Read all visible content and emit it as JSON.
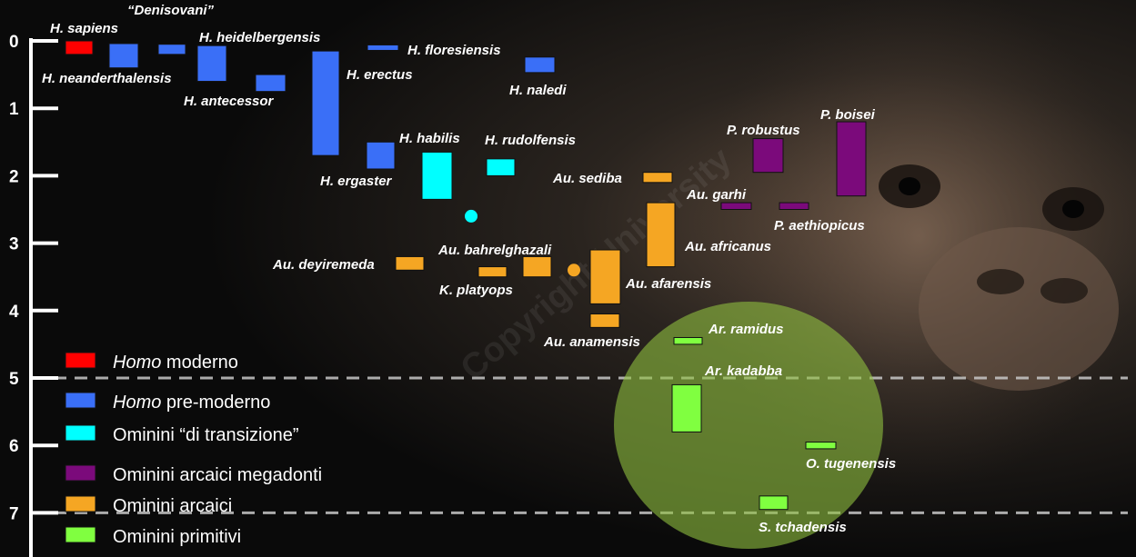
{
  "chart_data": {
    "type": "range-bar",
    "title": "",
    "xlabel": "",
    "ylabel": "",
    "ylim": [
      0,
      7.5
    ],
    "yticks": [
      "0",
      "1",
      "2",
      "3",
      "4",
      "5",
      "6",
      "7"
    ],
    "ref_lines": [
      5,
      7
    ],
    "grid": false,
    "legend_position": "bottom-left",
    "categories": {
      "homo-moderno": {
        "color": "#ff0000"
      },
      "homo-pre-moderno": {
        "color": "#3a6ff7"
      },
      "transizione": {
        "color": "#00ffff"
      },
      "megadonti": {
        "color": "#7b0a7b"
      },
      "arcaici": {
        "color": "#f5a623"
      },
      "primitivi": {
        "color": "#80ff40"
      }
    },
    "legend": [
      {
        "key": "homo-moderno",
        "italic": "Homo",
        "text": " moderno"
      },
      {
        "key": "homo-pre-moderno",
        "italic": "Homo",
        "text": " pre-moderno"
      },
      {
        "key": "transizione",
        "italic": "",
        "text": "Ominini “di transizione”"
      },
      {
        "key": "megadonti",
        "italic": "",
        "text": "Ominini arcaici megadonti"
      },
      {
        "key": "arcaici",
        "italic": "",
        "text": "Ominini arcaici"
      },
      {
        "key": "primitivi",
        "italic": "",
        "text": "Ominini primitivi"
      }
    ],
    "taxa": [
      {
        "name": "H. sapiens",
        "cat": "homo-moderno",
        "start": 0.0,
        "end": 0.2
      },
      {
        "name": "H. neanderthalensis",
        "cat": "homo-pre-moderno",
        "start": 0.04,
        "end": 0.4
      },
      {
        "name": "“Denisovani”",
        "cat": "homo-pre-moderno",
        "start": 0.05,
        "end": 0.2
      },
      {
        "name": "H. heidelbergensis",
        "cat": "homo-pre-moderno",
        "start": 0.07,
        "end": 0.6
      },
      {
        "name": "H. floresiensis",
        "cat": "homo-pre-moderno",
        "start": 0.06,
        "end": 0.12
      },
      {
        "name": "H. antecessor",
        "cat": "homo-pre-moderno",
        "start": 0.5,
        "end": 0.75
      },
      {
        "name": "H. erectus",
        "cat": "homo-pre-moderno",
        "start": 0.15,
        "end": 1.7
      },
      {
        "name": "H. naledi",
        "cat": "homo-pre-moderno",
        "start": 0.24,
        "end": 0.47
      },
      {
        "name": "H. ergaster",
        "cat": "homo-pre-moderno",
        "start": 1.5,
        "end": 1.9
      },
      {
        "name": "H. habilis",
        "cat": "transizione",
        "start": 1.65,
        "end": 2.35
      },
      {
        "name": "H. rudolfensis",
        "cat": "transizione",
        "start": 1.75,
        "end": 2.0
      },
      {
        "name": "",
        "cat": "transizione",
        "point": 2.6
      },
      {
        "name": "Au. sediba",
        "cat": "arcaici",
        "start": 1.95,
        "end": 2.1
      },
      {
        "name": "P. robustus",
        "cat": "megadonti",
        "start": 1.45,
        "end": 1.95
      },
      {
        "name": "P. boisei",
        "cat": "megadonti",
        "start": 1.2,
        "end": 2.3
      },
      {
        "name": "Au. garhi",
        "cat": "megadonti",
        "start": 2.4,
        "end": 2.5
      },
      {
        "name": "P. aethiopicus",
        "cat": "megadonti",
        "start": 2.4,
        "end": 2.5
      },
      {
        "name": "Au. africanus",
        "cat": "arcaici",
        "start": 2.4,
        "end": 3.35
      },
      {
        "name": "Au. deyiremeda",
        "cat": "arcaici",
        "start": 3.2,
        "end": 3.4
      },
      {
        "name": "K. platyops",
        "cat": "arcaici",
        "start": 3.35,
        "end": 3.5
      },
      {
        "name": "Au. bahrelghazali",
        "cat": "arcaici",
        "start": 3.2,
        "end": 3.5
      },
      {
        "name": "",
        "cat": "arcaici",
        "point": 3.4
      },
      {
        "name": "Au. afarensis",
        "cat": "arcaici",
        "start": 3.1,
        "end": 3.9
      },
      {
        "name": "Au. anamensis",
        "cat": "arcaici",
        "start": 4.05,
        "end": 4.25
      },
      {
        "name": "Ar. ramidus",
        "cat": "primitivi",
        "start": 4.4,
        "end": 4.5
      },
      {
        "name": "Ar. kadabba",
        "cat": "primitivi",
        "start": 5.1,
        "end": 5.8
      },
      {
        "name": "O. tugenensis",
        "cat": "primitivi",
        "start": 5.95,
        "end": 6.05
      },
      {
        "name": "S. tchadensis",
        "cat": "primitivi",
        "start": 6.75,
        "end": 6.95
      }
    ]
  },
  "watermark": "Copyright University"
}
